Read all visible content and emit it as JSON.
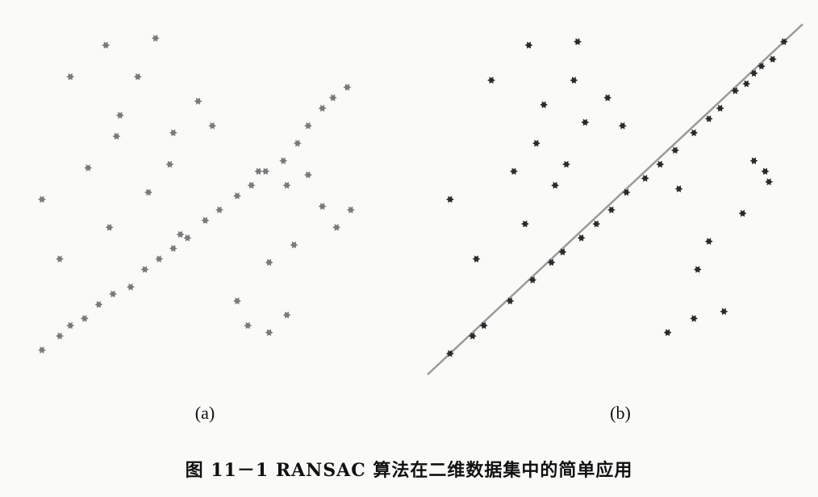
{
  "caption": "图 11－1   RANSAC 算法在二维数据集中的简单应用",
  "colors": {
    "points_a": "#7a7a7a",
    "points_b": "#2a2a2a",
    "fit_line": "#9a9a9a"
  },
  "chart_data": [
    {
      "type": "scatter",
      "panel_label": "(a)",
      "title": "",
      "xlabel": "",
      "ylabel": "",
      "grid": false,
      "xlim": [
        0,
        100
      ],
      "ylim": [
        0,
        100
      ],
      "points": [
        [
          5,
          7
        ],
        [
          10,
          11
        ],
        [
          13,
          14
        ],
        [
          17,
          16
        ],
        [
          21,
          20
        ],
        [
          25,
          23
        ],
        [
          30,
          25
        ],
        [
          34,
          30
        ],
        [
          38,
          33
        ],
        [
          42,
          36
        ],
        [
          46,
          39
        ],
        [
          51,
          44
        ],
        [
          55,
          47
        ],
        [
          60,
          51
        ],
        [
          64,
          54
        ],
        [
          68,
          58
        ],
        [
          73,
          61
        ],
        [
          77,
          66
        ],
        [
          80,
          71
        ],
        [
          84,
          76
        ],
        [
          87,
          79
        ],
        [
          91,
          82
        ],
        [
          23,
          94
        ],
        [
          37,
          96
        ],
        [
          32,
          85
        ],
        [
          13,
          85
        ],
        [
          49,
          78
        ],
        [
          27,
          74
        ],
        [
          26,
          68
        ],
        [
          42,
          69
        ],
        [
          53,
          71
        ],
        [
          41,
          60
        ],
        [
          18,
          59
        ],
        [
          5,
          50
        ],
        [
          35,
          52
        ],
        [
          24,
          42
        ],
        [
          10,
          33
        ],
        [
          44,
          40
        ],
        [
          66,
          58
        ],
        [
          74,
          54
        ],
        [
          80,
          57
        ],
        [
          88,
          42
        ],
        [
          84,
          48
        ],
        [
          92,
          47
        ],
        [
          76,
          37
        ],
        [
          69,
          32
        ],
        [
          60,
          21
        ],
        [
          74,
          17
        ],
        [
          69,
          12
        ],
        [
          63,
          14
        ]
      ]
    },
    {
      "type": "scatter",
      "panel_label": "(b)",
      "title": "",
      "xlabel": "",
      "ylabel": "",
      "grid": false,
      "xlim": [
        0,
        100
      ],
      "ylim": [
        0,
        100
      ],
      "fit_line": {
        "x1": 0,
        "y1": 0,
        "x2": 100,
        "y2": 100
      },
      "points": [
        [
          6,
          6
        ],
        [
          12,
          11
        ],
        [
          15,
          14
        ],
        [
          22,
          21
        ],
        [
          28,
          27
        ],
        [
          33,
          32
        ],
        [
          36,
          35
        ],
        [
          41,
          39
        ],
        [
          45,
          43
        ],
        [
          49,
          47
        ],
        [
          53,
          52
        ],
        [
          58,
          56
        ],
        [
          62,
          60
        ],
        [
          66,
          64
        ],
        [
          71,
          69
        ],
        [
          75,
          73
        ],
        [
          78,
          76
        ],
        [
          82,
          81
        ],
        [
          85,
          83
        ],
        [
          87,
          86
        ],
        [
          89,
          88
        ],
        [
          92,
          90
        ],
        [
          95,
          95
        ],
        [
          27,
          94
        ],
        [
          40,
          95
        ],
        [
          17,
          84
        ],
        [
          39,
          84
        ],
        [
          48,
          79
        ],
        [
          31,
          77
        ],
        [
          42,
          72
        ],
        [
          52,
          71
        ],
        [
          29,
          66
        ],
        [
          23,
          58
        ],
        [
          37,
          60
        ],
        [
          6,
          50
        ],
        [
          34,
          54
        ],
        [
          26,
          43
        ],
        [
          13,
          33
        ],
        [
          67,
          53
        ],
        [
          87,
          61
        ],
        [
          91,
          55
        ],
        [
          84,
          46
        ],
        [
          75,
          38
        ],
        [
          72,
          30
        ],
        [
          79,
          18
        ],
        [
          71,
          16
        ],
        [
          64,
          12
        ],
        [
          90,
          58
        ]
      ]
    }
  ]
}
